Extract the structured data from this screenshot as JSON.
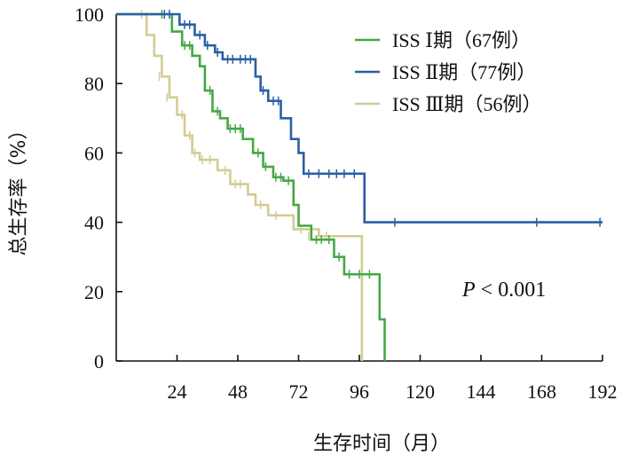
{
  "chart_data": {
    "type": "line",
    "title": "",
    "xlabel": "生存时间（月）",
    "ylabel": "总生存率（%）",
    "xlim": [
      0,
      192
    ],
    "ylim": [
      0,
      100
    ],
    "xticks": [
      24,
      48,
      72,
      96,
      120,
      144,
      168,
      192
    ],
    "yticks": [
      0,
      20,
      40,
      60,
      80,
      100
    ],
    "legend_position": "top-right",
    "annotation": {
      "italic": "P",
      "rest": " < 0.001"
    },
    "series": [
      {
        "name": "ISS Ⅰ期（67例）",
        "color": "#45a845",
        "x": [
          0,
          20,
          22,
          26,
          30,
          33,
          35,
          38,
          41,
          44,
          50,
          54,
          58,
          62,
          66,
          70,
          72,
          77,
          86,
          90,
          99,
          104,
          106
        ],
        "y": [
          100,
          100,
          95,
          91,
          88,
          85,
          78,
          72,
          70,
          67,
          64,
          60,
          56,
          53,
          52,
          45,
          39,
          35,
          30,
          25,
          25,
          12,
          0
        ],
        "censor_x": [
          18,
          27,
          29,
          37,
          40,
          45,
          47,
          49,
          56,
          59,
          63,
          65,
          68,
          79,
          81,
          84,
          88,
          92,
          96,
          100
        ],
        "censor_y": [
          100,
          91,
          91,
          78,
          72,
          67,
          67,
          67,
          60,
          56,
          53,
          53,
          52,
          35,
          35,
          35,
          30,
          25,
          25,
          25
        ]
      },
      {
        "name": "ISS Ⅱ期（77例）",
        "color": "#2a5fa6",
        "x": [
          0,
          22,
          25,
          31,
          35,
          39,
          42,
          55,
          57,
          60,
          65,
          69,
          72,
          74,
          98,
          192
        ],
        "y": [
          100,
          100,
          97,
          94,
          91,
          89,
          87,
          82,
          78,
          75,
          70,
          64,
          60,
          54,
          40,
          40
        ],
        "censor_x": [
          19,
          21,
          27,
          29,
          33,
          36,
          40,
          44,
          46,
          49,
          51,
          53,
          58,
          62,
          64,
          76,
          80,
          84,
          87,
          90,
          94,
          110,
          166,
          191
        ],
        "censor_y": [
          100,
          100,
          97,
          97,
          94,
          91,
          89,
          87,
          87,
          87,
          87,
          87,
          78,
          75,
          75,
          54,
          54,
          54,
          54,
          54,
          54,
          40,
          40,
          40
        ]
      },
      {
        "name": "ISS Ⅲ期（56例）",
        "color": "#d4cb94",
        "x": [
          0,
          9,
          12,
          15,
          18,
          21,
          24,
          27,
          30,
          33,
          40,
          45,
          52,
          55,
          60,
          70,
          80,
          95,
          97
        ],
        "y": [
          100,
          100,
          94,
          88,
          82,
          76,
          71,
          65,
          60,
          58,
          55,
          51,
          48,
          45,
          42,
          38,
          36,
          36,
          0
        ],
        "censor_x": [
          10,
          17,
          20,
          26,
          29,
          31,
          34,
          37,
          43,
          47,
          49,
          57,
          63,
          73,
          76,
          83
        ],
        "censor_y": [
          100,
          82,
          76,
          71,
          65,
          60,
          58,
          58,
          55,
          51,
          51,
          45,
          42,
          38,
          36,
          36
        ]
      }
    ]
  }
}
